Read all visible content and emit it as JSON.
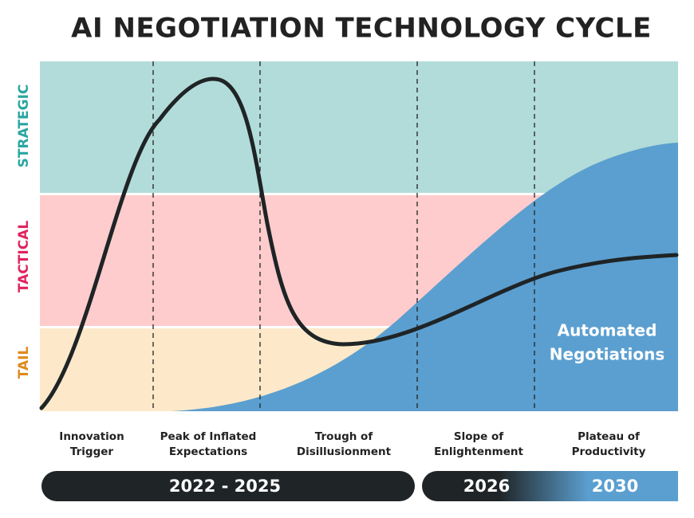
{
  "title": "AI NEGOTIATION TECHNOLOGY CYCLE",
  "bands": [
    {
      "label": "STRATEGIC"
    },
    {
      "label": "TACTICAL"
    },
    {
      "label": "TAIL"
    }
  ],
  "area_label": [
    "Automated",
    "Negotiations"
  ],
  "phases": [
    {
      "lines": [
        "Innovation",
        "Trigger"
      ]
    },
    {
      "lines": [
        "Peak of Inflated",
        "Expectations"
      ]
    },
    {
      "lines": [
        "Trough of",
        "Disillusionment"
      ]
    },
    {
      "lines": [
        "Slope of",
        "Enlightenment"
      ]
    },
    {
      "lines": [
        "Plateau of",
        "Productivity"
      ]
    }
  ],
  "timeline": [
    "2022 - 2025",
    "2026",
    "2030"
  ]
}
